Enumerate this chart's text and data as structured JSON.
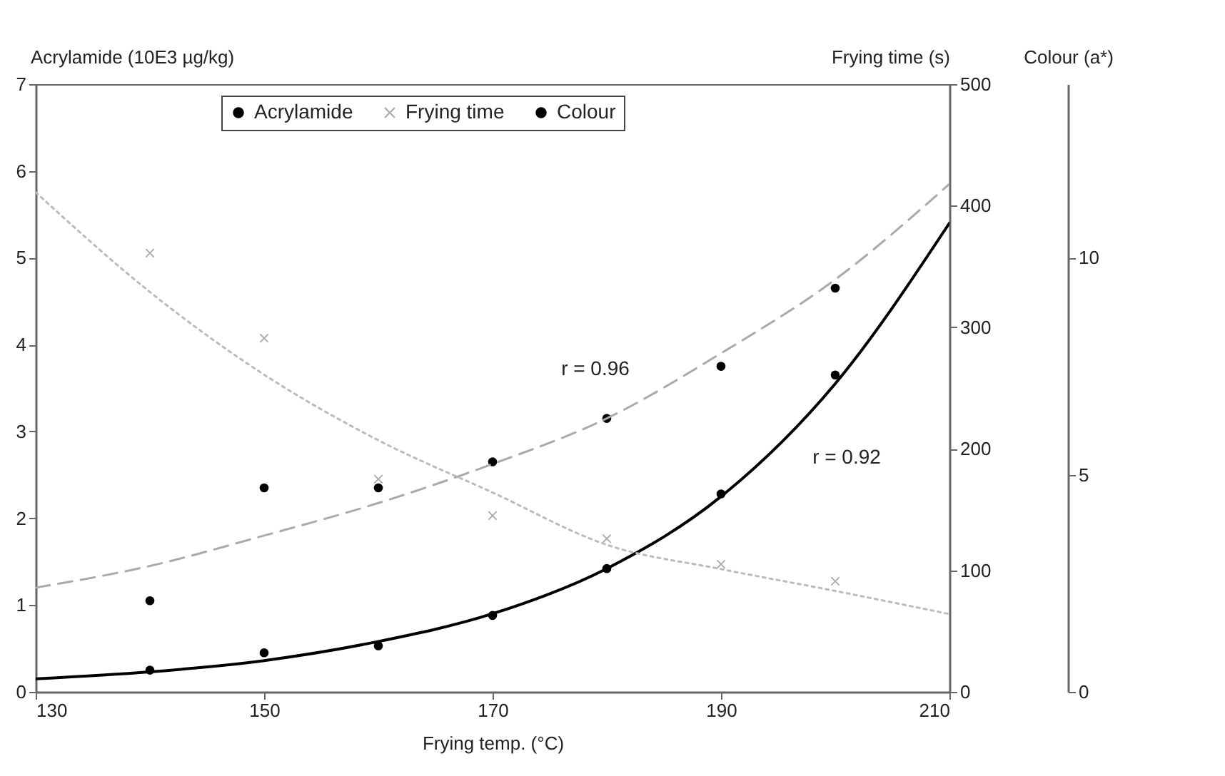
{
  "chart_data": {
    "type": "scatter",
    "xlabel": "Frying temp. (°C)",
    "ylabel": "Acrylamide (10E3 µg/kg)",
    "y2label": "Frying time (s)",
    "y3label": "Colour (a*)",
    "x": [
      140,
      150,
      160,
      170,
      180,
      190,
      200
    ],
    "xlim": [
      130,
      210
    ],
    "xticks": [
      130,
      150,
      170,
      190,
      210
    ],
    "ylim": [
      0,
      7
    ],
    "yticks": [
      0,
      1,
      2,
      3,
      4,
      5,
      6,
      7
    ],
    "y2lim": [
      0,
      500
    ],
    "y2ticks": [
      0,
      100,
      200,
      300,
      400,
      500
    ],
    "y3lim": [
      0,
      14
    ],
    "y3ticks": [
      0,
      5,
      10
    ],
    "grid": false,
    "legend": "top",
    "series": [
      {
        "name": "Acrylamide",
        "marker": "circle",
        "color": "#000000",
        "values": [
          0.25,
          0.45,
          0.53,
          0.88,
          1.42,
          2.28,
          3.65
        ]
      },
      {
        "name": "Frying time",
        "marker": "cross",
        "color": "#aaaaaa",
        "axis": "y2",
        "values": [
          361,
          291,
          175,
          145,
          126,
          105,
          91
        ]
      },
      {
        "name": "Colour",
        "marker": "circle",
        "color": "#000000",
        "axis": "y3",
        "values": [
          2.1,
          4.7,
          4.7,
          5.3,
          6.3,
          7.5,
          9.3
        ]
      },
      {
        "type": "line",
        "line_style": "solid",
        "color": "#000000",
        "x": [
          130,
          140,
          150,
          160,
          170,
          180,
          190,
          200,
          210
        ],
        "values": [
          0.15,
          0.23,
          0.36,
          0.58,
          0.9,
          1.42,
          2.25,
          3.55,
          5.4
        ]
      },
      {
        "type": "line",
        "line_style": "dotted",
        "color": "#bbbbbb",
        "axis": "y2",
        "x": [
          130,
          140,
          150,
          160,
          170,
          180,
          190,
          200,
          210
        ],
        "values": [
          411,
          329,
          261,
          207,
          164,
          121,
          101,
          83,
          64
        ]
      },
      {
        "type": "line",
        "line_style": "dashed",
        "color": "#aaaaaa",
        "axis": "y3",
        "x": [
          130,
          140,
          150,
          160,
          170,
          180,
          190,
          200,
          210
        ],
        "values": [
          2.4,
          2.9,
          3.6,
          4.35,
          5.25,
          6.3,
          7.8,
          9.5,
          11.7
        ]
      }
    ],
    "annotations": [
      "r = 0.96",
      "r = 0.92"
    ]
  }
}
